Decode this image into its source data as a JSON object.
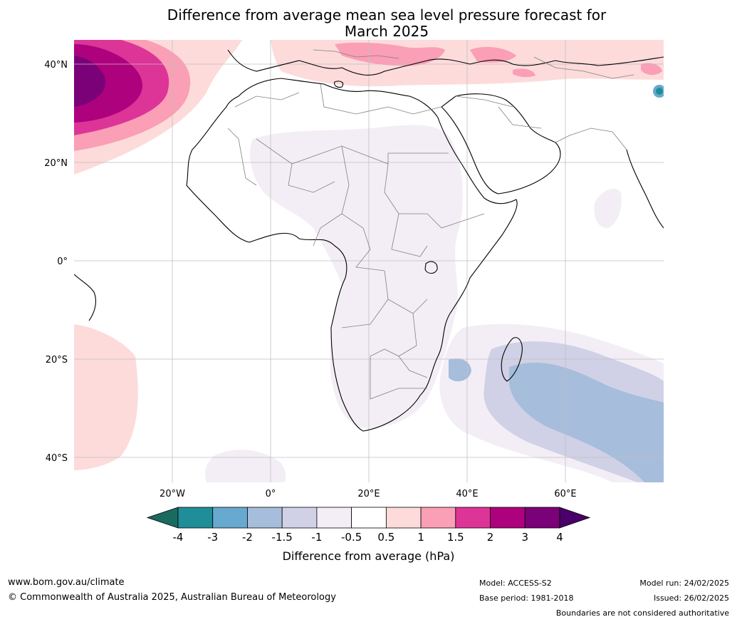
{
  "title": {
    "line1": "Difference from average mean sea level pressure forecast for",
    "line2": "March 2025"
  },
  "axes": {
    "lat_labels": [
      "40°N",
      "20°N",
      "0°",
      "20°S",
      "40°S"
    ],
    "lon_labels": [
      "20°W",
      "0°",
      "20°E",
      "40°E",
      "60°E"
    ]
  },
  "colorbar": {
    "ticks": [
      "-4",
      "-3",
      "-2",
      "-1.5",
      "-1",
      "-0.5",
      "0.5",
      "1",
      "1.5",
      "2",
      "3",
      "4"
    ],
    "colors": [
      "#1a6a60",
      "#1f8e98",
      "#67a9cf",
      "#a6bddb",
      "#d0d1e6",
      "#f3eef6",
      "#ffffff",
      "#fddbdb",
      "#fa9fb5",
      "#dd3497",
      "#ae017e",
      "#7a0177",
      "#49006a"
    ],
    "label": "Difference from average (hPa)"
  },
  "footer": {
    "website": "www.bom.gov.au/climate",
    "copyright": "© Commonwealth of Australia 2025, Australian Bureau of Meteorology",
    "model": "Model: ACCESS-S2",
    "base_period": "Base period: 1981-2018",
    "model_run": "Model run: 24/02/2025",
    "issued": "Issued: 26/02/2025",
    "disclaimer": "Boundaries are not considered authoritative"
  }
}
